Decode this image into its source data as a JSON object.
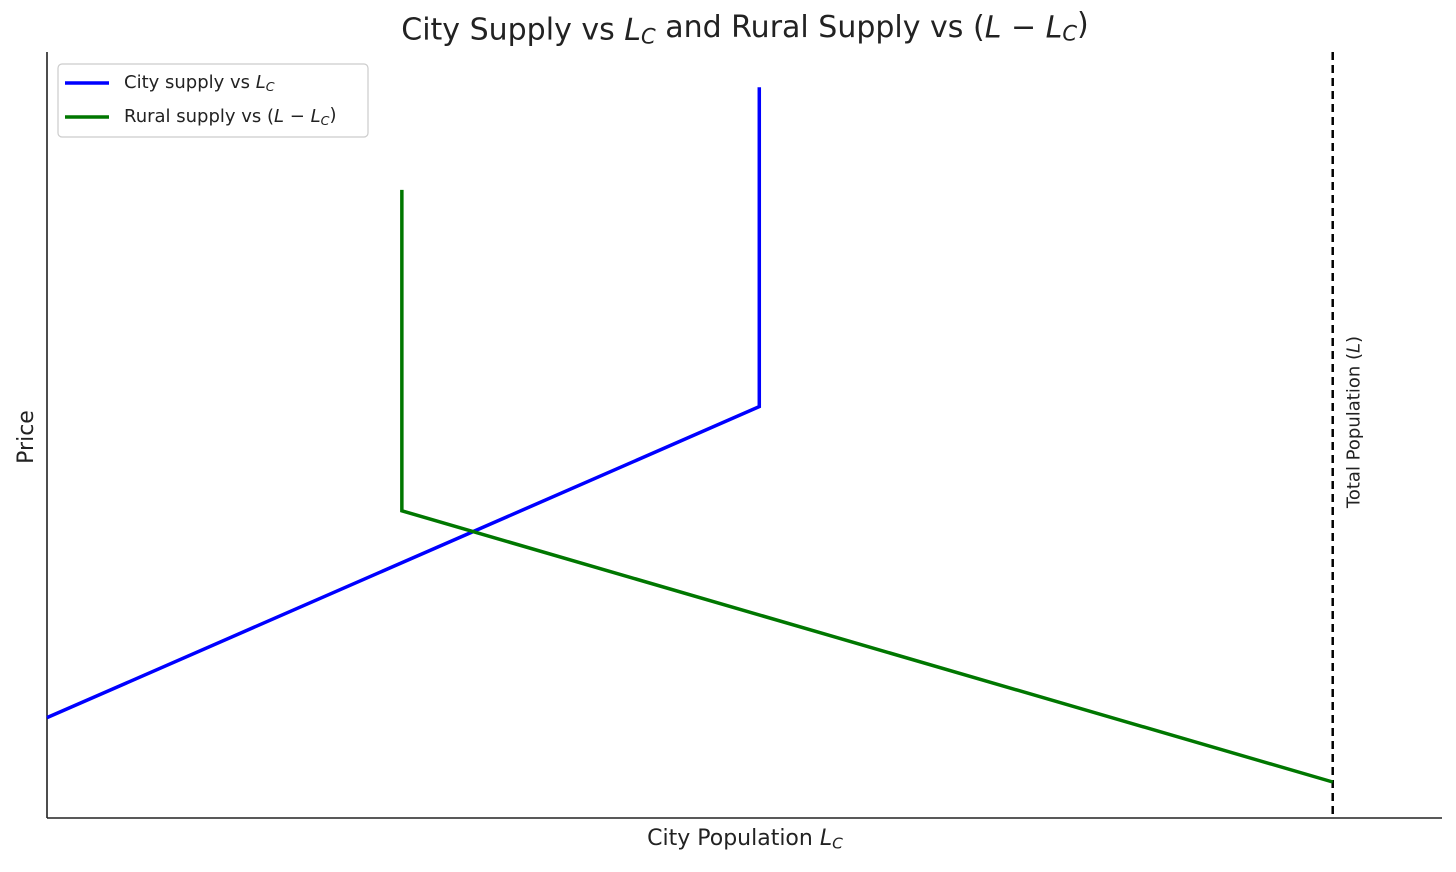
{
  "chart_data": {
    "type": "line",
    "title": "City Supply vs L_C and Rural Supply vs (L − L_C)",
    "x_label": "City Population L_C",
    "y_label": "Price",
    "xlim": [
      0,
      108.5
    ],
    "ylim": [
      0,
      100
    ],
    "legend": "upper left",
    "series": [
      {
        "name": "City supply vs L_C",
        "color": "#0000ff",
        "x": [
          0,
          55.4,
          55.4
        ],
        "values": [
          13.1,
          53.7,
          95.4
        ]
      },
      {
        "name": "Rural supply vs (L − L_C)",
        "color": "#007700",
        "x": [
          27.6,
          27.6,
          100
        ],
        "values": [
          82.0,
          40.1,
          4.7
        ]
      }
    ],
    "vline": {
      "x": 100,
      "label": "Total Population (L)",
      "color": "#000000"
    }
  }
}
